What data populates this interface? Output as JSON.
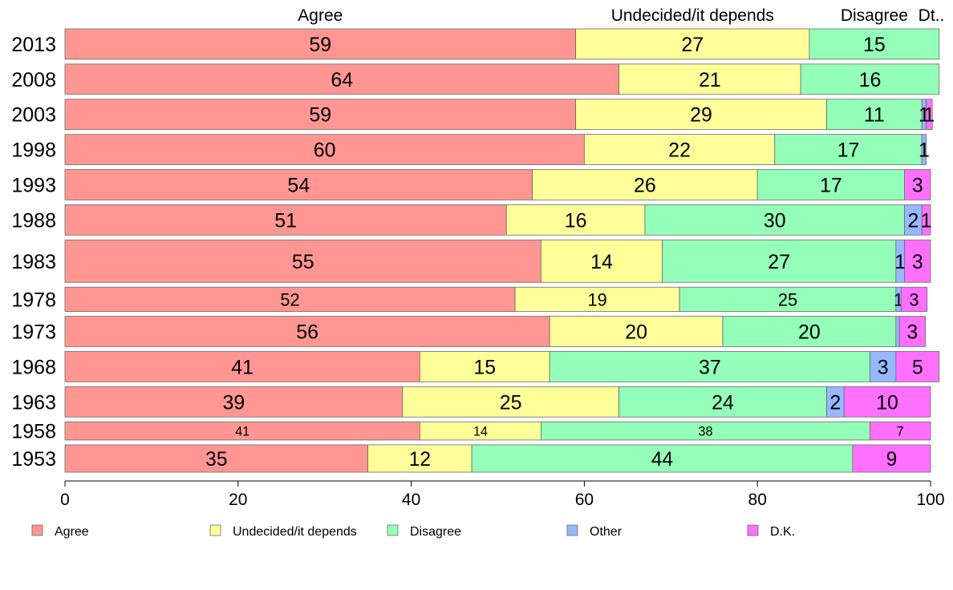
{
  "chart_data": {
    "type": "bar",
    "orientation": "horizontal",
    "stacked": true,
    "categories": [
      "2013",
      "2008",
      "2003",
      "1998",
      "1993",
      "1988",
      "1983",
      "1978",
      "1973",
      "1968",
      "1963",
      "1958",
      "1953"
    ],
    "series": [
      {
        "name": "Agree",
        "color": "#ff9692",
        "values": [
          59,
          64,
          59,
          60,
          54,
          51,
          55,
          52,
          56,
          41,
          39,
          41,
          35
        ],
        "labels": [
          "59",
          "64",
          "59",
          "60",
          "54",
          "51",
          "55",
          "52",
          "56",
          "41",
          "39",
          "41",
          "35"
        ]
      },
      {
        "name": "Undecided/it depends",
        "color": "#ffff99",
        "values": [
          27,
          21,
          29,
          22,
          26,
          16,
          14,
          19,
          20,
          15,
          25,
          14,
          12
        ],
        "labels": [
          "27",
          "21",
          "29",
          "22",
          "26",
          "16",
          "14",
          "19",
          "20",
          "15",
          "25",
          "14",
          "12"
        ]
      },
      {
        "name": "Disagree",
        "color": "#94ffb8",
        "values": [
          15,
          16,
          11,
          17,
          17,
          30,
          27,
          25,
          20,
          37,
          24,
          38,
          44
        ],
        "labels": [
          "15",
          "16",
          "11",
          "17",
          "17",
          "30",
          "27",
          "25",
          "20",
          "37",
          "24",
          "38",
          "44"
        ]
      },
      {
        "name": "Other",
        "color": "#96b8ff",
        "values": [
          0,
          0,
          0.5,
          0.5,
          0,
          2,
          1,
          0.6,
          0.4,
          3,
          2,
          0,
          0
        ],
        "labels": [
          "",
          "",
          "1",
          "1",
          "",
          "2",
          "1",
          "1",
          "",
          "3",
          "2",
          "",
          ""
        ]
      },
      {
        "name": "D.K.",
        "color": "#ff70ff",
        "values": [
          0,
          0,
          0.7,
          0,
          3,
          1,
          3,
          3,
          3,
          5,
          10,
          7,
          9
        ],
        "labels": [
          "",
          "",
          "1",
          "",
          "3",
          "1",
          "3",
          "3",
          "3",
          "5",
          "10",
          "7",
          "9"
        ]
      }
    ],
    "row_weights": [
      1.0,
      1.0,
      1.0,
      1.0,
      1.0,
      1.0,
      1.4,
      0.8,
      1.0,
      1.0,
      1.0,
      0.6,
      0.9
    ],
    "top_labels": [
      "Agree",
      "Undecided/it depends",
      "Disagree",
      "Dt.."
    ],
    "xlim": [
      0,
      100
    ],
    "xticks": [
      "0",
      "20",
      "40",
      "60",
      "80",
      "100"
    ],
    "xlabel": "",
    "ylabel": "",
    "grid": false,
    "legend_position": "bottom"
  }
}
